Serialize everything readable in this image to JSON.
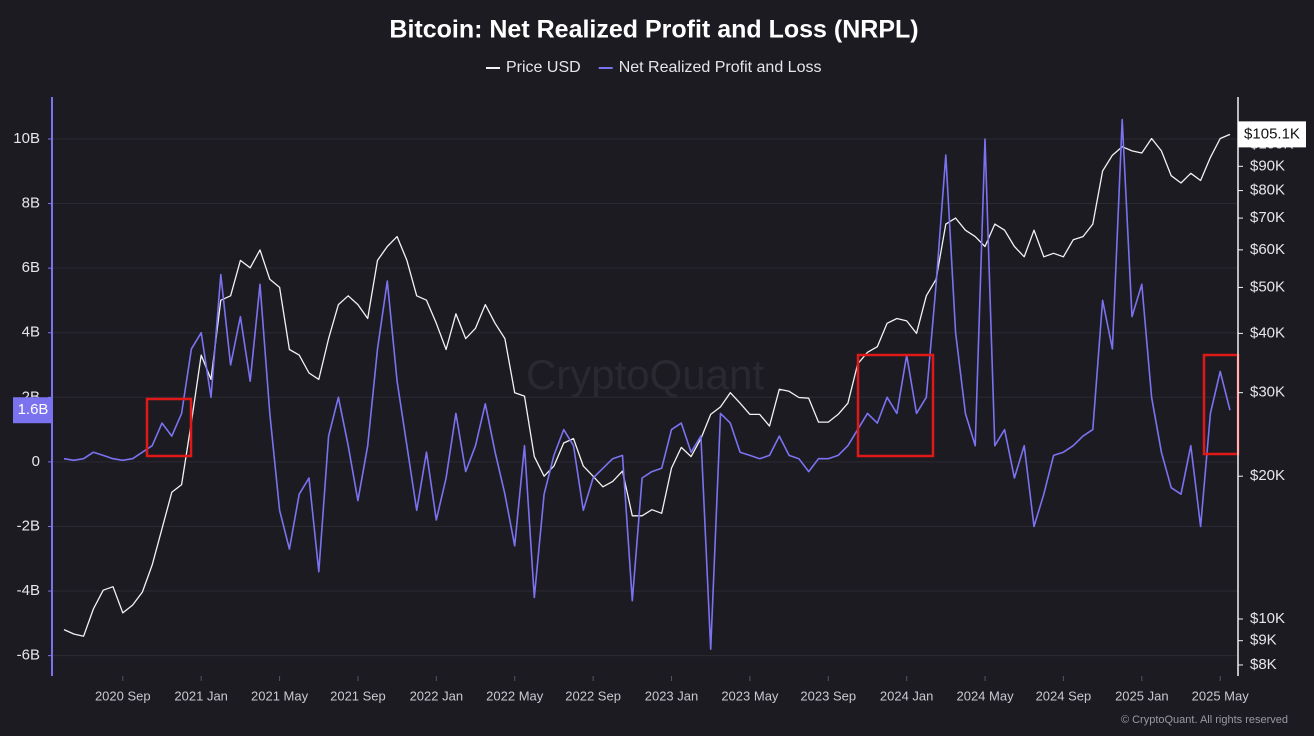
{
  "chart_data": {
    "type": "line",
    "title": "Bitcoin: Net Realized Profit and Loss (NRPL)",
    "watermark": "CryptoQuant",
    "footer": "© CryptoQuant. All rights reserved",
    "categories": [
      null,
      null,
      null,
      null,
      null,
      null,
      "2020 Sep",
      null,
      null,
      null,
      null,
      null,
      null,
      null,
      "2021 Jan",
      null,
      null,
      null,
      null,
      null,
      null,
      null,
      "2021 May",
      null,
      null,
      null,
      null,
      null,
      null,
      null,
      "2021 Sep",
      null,
      null,
      null,
      null,
      null,
      null,
      null,
      "2022 Jan",
      null,
      null,
      null,
      null,
      null,
      null,
      null,
      "2022 May",
      null,
      null,
      null,
      null,
      null,
      null,
      null,
      "2022 Sep",
      null,
      null,
      null,
      null,
      null,
      null,
      null,
      "2023 Jan",
      null,
      null,
      null,
      null,
      null,
      null,
      null,
      "2023 May",
      null,
      null,
      null,
      null,
      null,
      null,
      null,
      "2023 Sep",
      null,
      null,
      null,
      null,
      null,
      null,
      null,
      "2024 Jan",
      null,
      null,
      null,
      null,
      null,
      null,
      null,
      "2024 May",
      null,
      null,
      null,
      null,
      null,
      null,
      null,
      "2024 Sep",
      null,
      null,
      null,
      null,
      null,
      null,
      null,
      "2025 Jan",
      null,
      null,
      null,
      null,
      null,
      null,
      null,
      "2025 May",
      null
    ],
    "series": [
      {
        "name": "Price USD",
        "color": "#f2f2f2",
        "axis": "y2",
        "current_label": "$105.1K",
        "values": [
          9500,
          9300,
          9200,
          10500,
          11500,
          11700,
          10300,
          10700,
          11400,
          13000,
          15500,
          18500,
          19200,
          26000,
          36000,
          32000,
          47000,
          48000,
          57000,
          55000,
          60000,
          52000,
          50000,
          37000,
          36000,
          33000,
          32000,
          39000,
          46000,
          48000,
          46000,
          43000,
          57000,
          61000,
          64000,
          57000,
          48000,
          47000,
          42000,
          37000,
          44000,
          39000,
          41000,
          46000,
          42000,
          39000,
          30000,
          29500,
          22000,
          20000,
          21000,
          23500,
          24000,
          21000,
          20000,
          19000,
          19500,
          20500,
          16500,
          16500,
          17000,
          16700,
          20800,
          23000,
          22000,
          24000,
          27000,
          28000,
          30000,
          28500,
          27000,
          27000,
          25500,
          30500,
          30200,
          29300,
          29200,
          26000,
          26000,
          27000,
          28500,
          34500,
          36500,
          37500,
          42000,
          43000,
          42500,
          40000,
          48000,
          52000,
          68000,
          70000,
          66000,
          64000,
          61000,
          68000,
          66000,
          61000,
          58000,
          66000,
          58000,
          59000,
          58000,
          63000,
          64000,
          68000,
          88000,
          95000,
          99000,
          97000,
          96000,
          103000,
          97000,
          86000,
          83000,
          87000,
          84000,
          94000,
          103000,
          105100
        ]
      },
      {
        "name": "Net Realized Profit and Loss",
        "color": "#7b72f0",
        "axis": "y",
        "current_label": "1.6B",
        "values": [
          0.1,
          0.05,
          0.1,
          0.3,
          0.2,
          0.1,
          0.05,
          0.1,
          0.3,
          0.5,
          1.2,
          0.8,
          1.5,
          3.5,
          4.0,
          2.0,
          5.8,
          3.0,
          4.5,
          2.5,
          5.5,
          1.5,
          -1.5,
          -2.7,
          -1.0,
          -0.5,
          -3.4,
          0.8,
          2.0,
          0.5,
          -1.2,
          0.5,
          3.5,
          5.6,
          2.5,
          0.5,
          -1.5,
          0.3,
          -1.8,
          -0.5,
          1.5,
          -0.3,
          0.5,
          1.8,
          0.3,
          -1.0,
          -2.6,
          0.5,
          -4.2,
          -1.0,
          0.2,
          1.0,
          0.5,
          -1.5,
          -0.5,
          -0.2,
          0.1,
          0.2,
          -4.3,
          -0.5,
          -0.3,
          -0.2,
          1.0,
          1.2,
          0.3,
          0.8,
          -5.8,
          1.5,
          1.2,
          0.3,
          0.2,
          0.1,
          0.2,
          0.8,
          0.2,
          0.1,
          -0.3,
          0.1,
          0.1,
          0.2,
          0.5,
          1.0,
          1.5,
          1.2,
          2.0,
          1.5,
          3.3,
          1.5,
          2.0,
          5.5,
          9.5,
          4.0,
          1.5,
          0.5,
          10.0,
          0.5,
          1.0,
          -0.5,
          0.5,
          -2.0,
          -1.0,
          0.2,
          0.3,
          0.5,
          0.8,
          1.0,
          5.0,
          3.5,
          10.6,
          4.5,
          5.5,
          2.0,
          0.3,
          -0.8,
          -1.0,
          0.5,
          -2.0,
          1.5,
          2.8,
          1.6
        ]
      }
    ],
    "ylim": [
      -6.6,
      11.3
    ],
    "yticks": [
      {
        "value": -6,
        "label": "-6B"
      },
      {
        "value": -4,
        "label": "-4B"
      },
      {
        "value": -2,
        "label": "-2B"
      },
      0,
      {
        "value": 2,
        "label": "2B"
      },
      {
        "value": 4,
        "label": "4B"
      },
      {
        "value": 6,
        "label": "6B"
      },
      {
        "value": 8,
        "label": "8B"
      },
      {
        "value": 10,
        "label": "10B"
      }
    ],
    "y2lim": [
      7620,
      126000
    ],
    "y2_log": true,
    "y2ticks": [
      {
        "value": 8000,
        "label": "$8K"
      },
      {
        "value": 9000,
        "label": "$9K"
      },
      {
        "value": 10000,
        "label": "$10K"
      },
      {
        "value": 20000,
        "label": "$20K"
      },
      {
        "value": 30000,
        "label": "$30K"
      },
      {
        "value": 40000,
        "label": "$40K"
      },
      {
        "value": 50000,
        "label": "$50K"
      },
      {
        "value": 60000,
        "label": "$60K"
      },
      {
        "value": 70000,
        "label": "$70K"
      },
      {
        "value": 80000,
        "label": "$80K"
      },
      {
        "value": 90000,
        "label": "$90K"
      },
      {
        "value": 100000,
        "label": "$100K"
      }
    ],
    "grid": true
  }
}
